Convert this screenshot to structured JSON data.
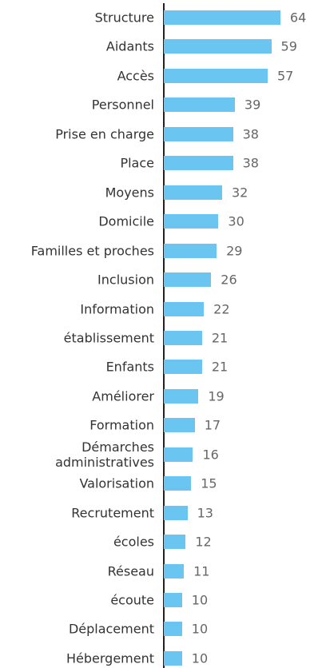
{
  "chart_data": {
    "type": "bar",
    "orientation": "horizontal",
    "color": "#6ac5f1",
    "categories": [
      "Structure",
      "Aidants",
      "Accès",
      "Personnel",
      "Prise en charge",
      "Place",
      "Moyens",
      "Domicile",
      "Familles et proches",
      "Inclusion",
      "Information",
      "établissement",
      "Enfants",
      "Améliorer",
      "Formation",
      "Démarches administratives",
      "Valorisation",
      "Recrutement",
      "écoles",
      "Réseau",
      "écoute",
      "Déplacement",
      "Hébergement"
    ],
    "values": [
      64,
      59,
      57,
      39,
      38,
      38,
      32,
      30,
      29,
      26,
      22,
      21,
      21,
      19,
      17,
      16,
      15,
      13,
      12,
      11,
      10,
      10,
      10
    ]
  }
}
